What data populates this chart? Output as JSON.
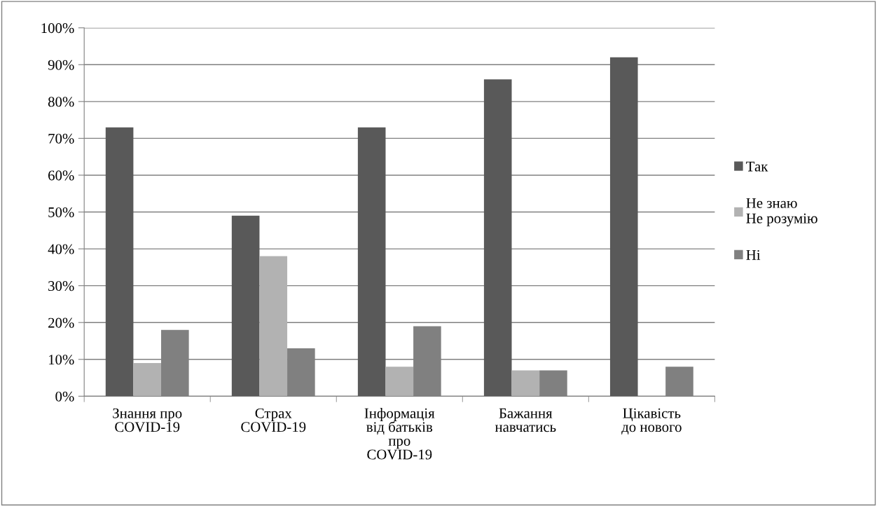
{
  "chart_data": {
    "type": "bar",
    "categories": [
      "Знання про\nCOVID-19",
      "Страх\nCOVID-19",
      "Інформація\nвід батьків\nпро\nCOVID-19",
      "Бажання\nнавчатись",
      "Цікавість\nдо нового"
    ],
    "series": [
      {
        "name": "Так",
        "color": "#595959",
        "values": [
          73,
          49,
          73,
          86,
          92
        ]
      },
      {
        "name": "Не знаю\nНе розумію",
        "color": "#b2b2b2",
        "values": [
          9,
          38,
          8,
          7,
          0
        ]
      },
      {
        "name": "Ні",
        "color": "#808080",
        "values": [
          18,
          13,
          19,
          7,
          8
        ]
      }
    ],
    "ylim": [
      0,
      100
    ],
    "yticks": [
      {
        "value": 0,
        "label": "0%"
      },
      {
        "value": 10,
        "label": "10%"
      },
      {
        "value": 20,
        "label": "20%"
      },
      {
        "value": 30,
        "label": "30%"
      },
      {
        "value": 40,
        "label": "40%"
      },
      {
        "value": 50,
        "label": "50%"
      },
      {
        "value": 60,
        "label": "60%"
      },
      {
        "value": 70,
        "label": "70%"
      },
      {
        "value": 80,
        "label": "80%"
      },
      {
        "value": 90,
        "label": "90%"
      },
      {
        "value": 100,
        "label": "100%"
      }
    ],
    "grid": "y",
    "legend": "right"
  }
}
